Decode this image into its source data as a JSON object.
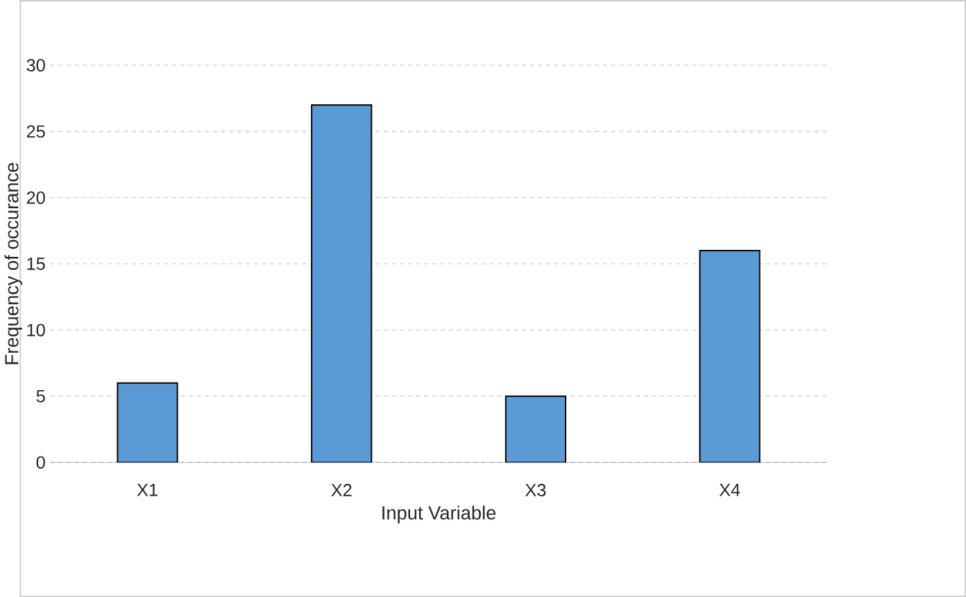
{
  "chart_data": {
    "type": "bar",
    "xlabel": "Input Variable",
    "ylabel": "Frequency of occurance",
    "categories": [
      "X1",
      "X2",
      "X3",
      "X4"
    ],
    "values": [
      6,
      27,
      5,
      16
    ],
    "color": "#5b9bd5",
    "ylim": [
      0,
      30
    ],
    "yticks": [
      0,
      5,
      10,
      15,
      20,
      25,
      30
    ],
    "grid": "y"
  }
}
